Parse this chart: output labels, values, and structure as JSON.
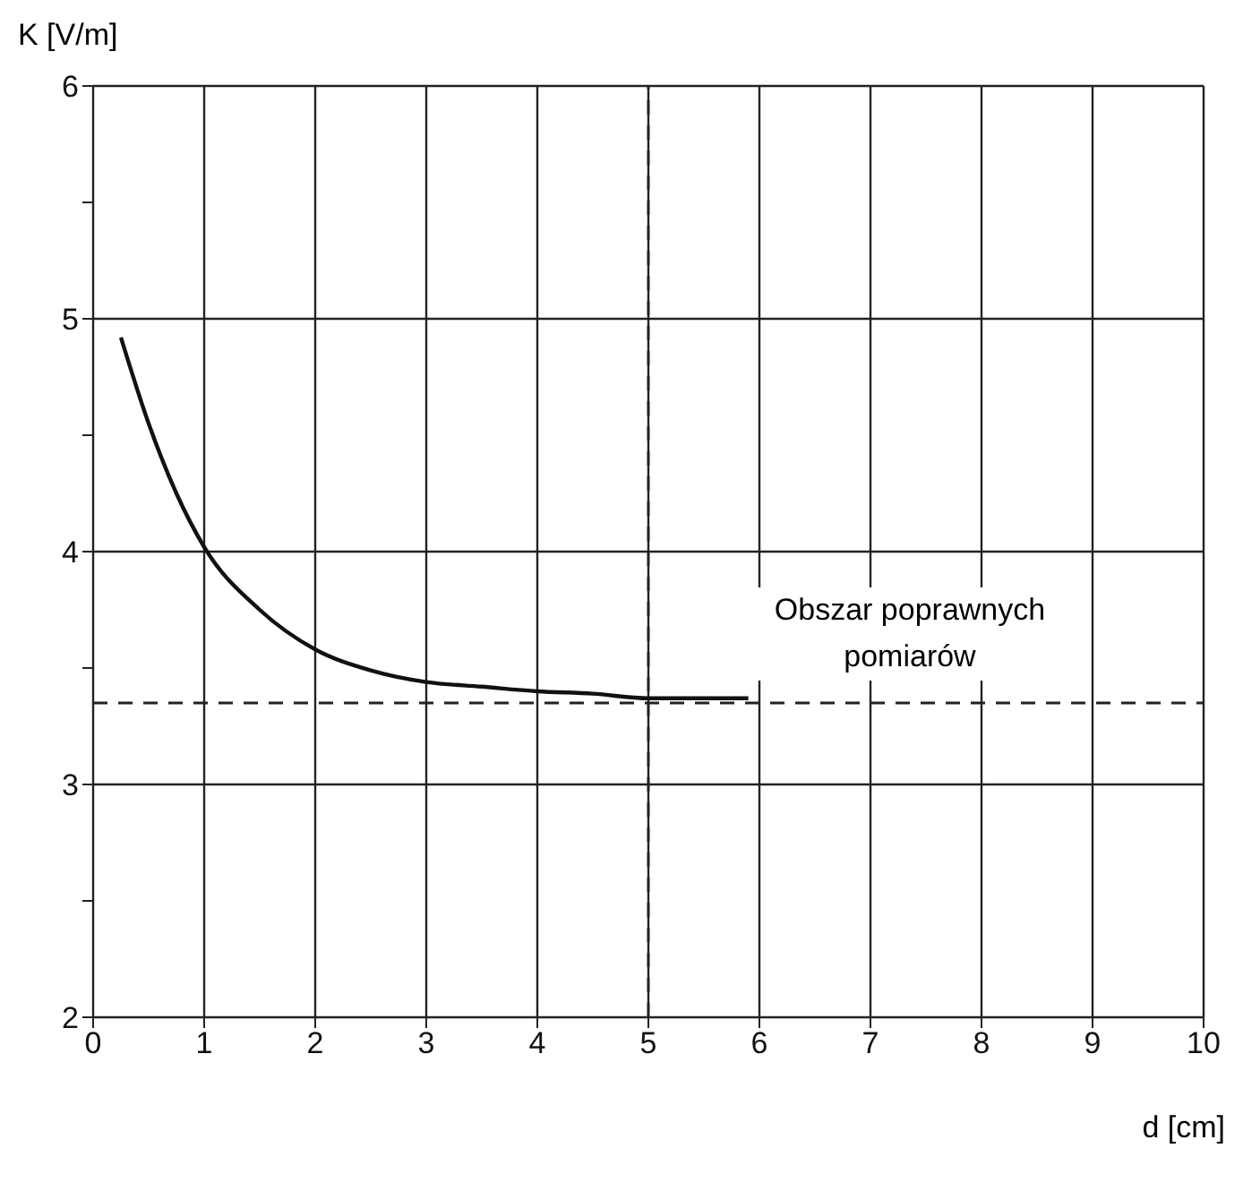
{
  "chart_data": {
    "type": "line",
    "xlabel": "d [cm]",
    "ylabel": "K [V/m]",
    "x": [
      0.25,
      0.5,
      0.75,
      1,
      1.5,
      2,
      2.5,
      3,
      3.5,
      4,
      4.5,
      5,
      5.5,
      5.9
    ],
    "series": [
      {
        "color": "#111111",
        "values": [
          4.92,
          4.55,
          4.25,
          4.02,
          3.75,
          3.58,
          3.49,
          3.44,
          3.42,
          3.4,
          3.39,
          3.37,
          3.37,
          3.37
        ]
      }
    ],
    "xlim": [
      0,
      10
    ],
    "xticks": [
      0,
      1,
      2,
      3,
      4,
      5,
      6,
      7,
      8,
      9,
      10
    ],
    "ylim": [
      2,
      6
    ],
    "yticks": [
      2,
      {
        "value": 2.5,
        "label": null
      },
      3,
      {
        "value": 3.5,
        "label": null
      },
      4,
      {
        "value": 4.5,
        "label": null
      },
      5,
      {
        "value": 5.5,
        "label": null
      },
      6
    ],
    "grid": true,
    "marker": "none",
    "line_style": "solid",
    "ref_lines": [
      {
        "axis": "y",
        "value": 3.35,
        "line_style": "dashed",
        "color": "#222222"
      },
      {
        "axis": "x",
        "value": 5,
        "line_style": "dashed",
        "color": "#222222"
      }
    ],
    "annotations": [
      "Obszar poprawnych pomiarów"
    ]
  }
}
